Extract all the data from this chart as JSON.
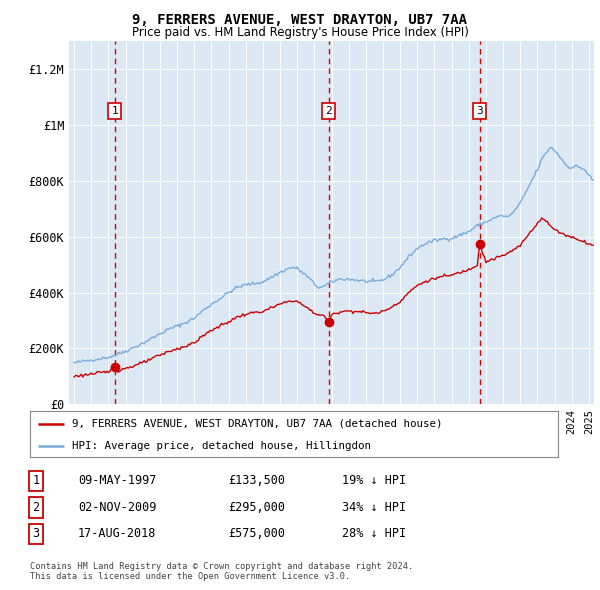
{
  "title": "9, FERRERS AVENUE, WEST DRAYTON, UB7 7AA",
  "subtitle": "Price paid vs. HM Land Registry's House Price Index (HPI)",
  "plot_bg_color": "#dce9f5",
  "ylim": [
    0,
    1300000
  ],
  "yticks": [
    0,
    200000,
    400000,
    600000,
    800000,
    1000000,
    1200000
  ],
  "ytick_labels": [
    "£0",
    "£200K",
    "£400K",
    "£600K",
    "£800K",
    "£1M",
    "£1.2M"
  ],
  "xlim_start": 1994.7,
  "xlim_end": 2025.3,
  "sale_dates": [
    1997.36,
    2009.84,
    2018.63
  ],
  "sale_prices": [
    133500,
    295000,
    575000
  ],
  "sale_labels": [
    "1",
    "2",
    "3"
  ],
  "red_line_color": "#cc0000",
  "blue_line_color": "#7aabdb",
  "dashed_color": "#dd0000",
  "legend_label_red": "9, FERRERS AVENUE, WEST DRAYTON, UB7 7AA (detached house)",
  "legend_label_blue": "HPI: Average price, detached house, Hillingdon",
  "table_entries": [
    {
      "num": "1",
      "date": "09-MAY-1997",
      "price": "£133,500",
      "pct": "19% ↓ HPI"
    },
    {
      "num": "2",
      "date": "02-NOV-2009",
      "price": "£295,000",
      "pct": "34% ↓ HPI"
    },
    {
      "num": "3",
      "date": "17-AUG-2018",
      "price": "£575,000",
      "pct": "28% ↓ HPI"
    }
  ],
  "footnote": "Contains HM Land Registry data © Crown copyright and database right 2024.\nThis data is licensed under the Open Government Licence v3.0."
}
